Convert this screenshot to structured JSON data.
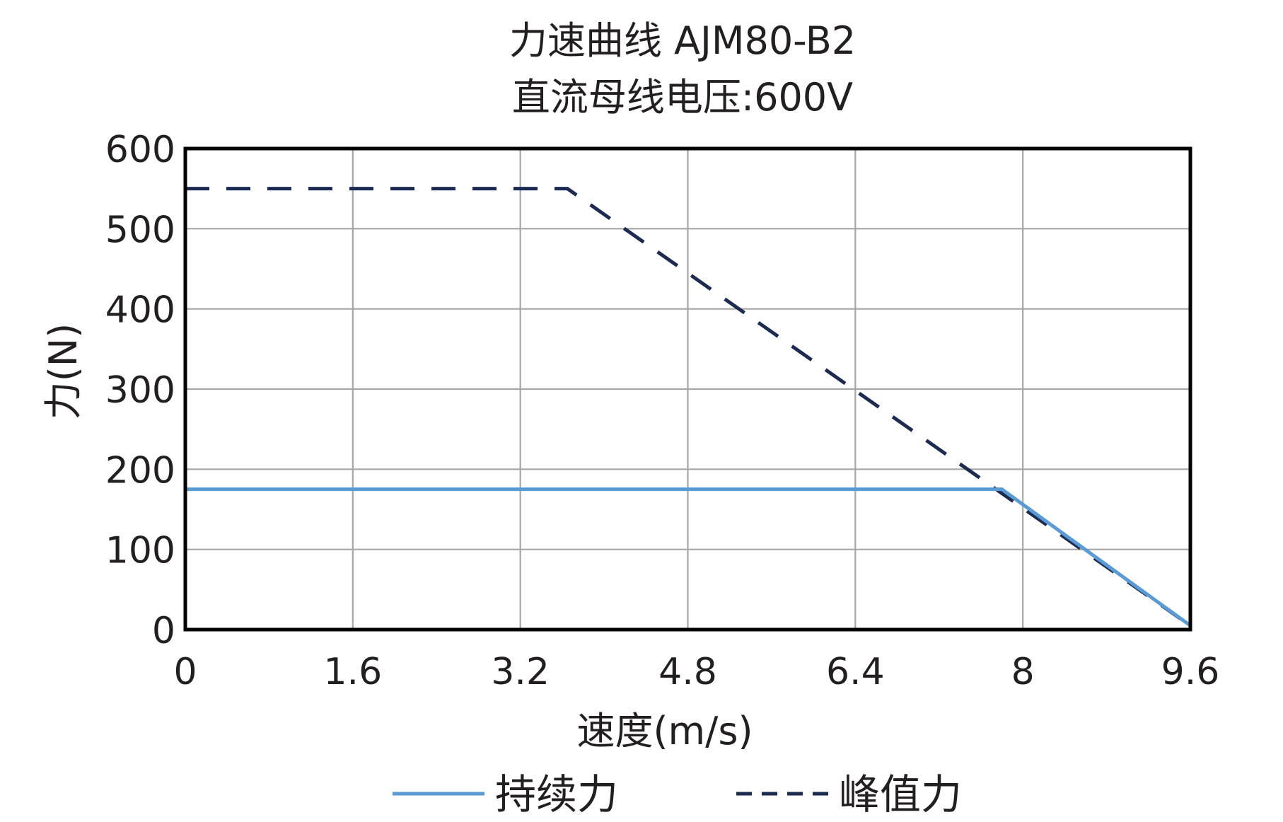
{
  "chart_data": {
    "type": "line",
    "title": "力速曲线 AJM80-B2",
    "subtitle": "直流母线电压:600V",
    "xlabel": "速度(m/s)",
    "ylabel": "力(N)",
    "xlim": [
      0,
      9.6
    ],
    "ylim": [
      0,
      600
    ],
    "x_ticks": [
      "0",
      "1.6",
      "3.2",
      "4.8",
      "6.4",
      "8",
      "9.6"
    ],
    "y_ticks": [
      "0",
      "100",
      "200",
      "300",
      "400",
      "500",
      "600"
    ],
    "grid": true,
    "legend_position": "bottom",
    "series": [
      {
        "name": "持续力",
        "style": "solid",
        "color": "#5b9bd5",
        "points": [
          [
            0,
            175
          ],
          [
            7.8,
            175
          ],
          [
            9.6,
            5
          ]
        ]
      },
      {
        "name": "峰值力",
        "style": "dashed",
        "color": "#1c2b4f",
        "points": [
          [
            0,
            550
          ],
          [
            3.65,
            550
          ],
          [
            9.6,
            5
          ]
        ]
      }
    ]
  }
}
